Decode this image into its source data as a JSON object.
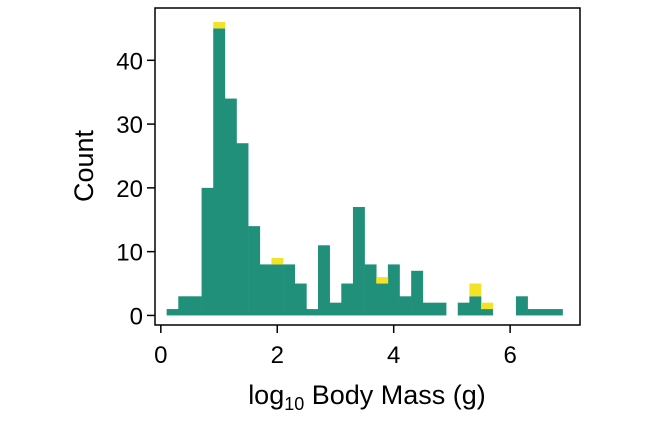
{
  "chart_data": {
    "type": "bar",
    "chart_style": "stacked histogram",
    "title": "",
    "xlabel": "log",
    "xlabel_subscript": "10",
    "xlabel_rest": " Body Mass (g)",
    "ylabel": "Count",
    "xlim": [
      -0.1,
      7.2
    ],
    "ylim": [
      -1.5,
      48.2
    ],
    "xticks": [
      0,
      2,
      4,
      6
    ],
    "yticks": [
      0,
      10,
      20,
      30,
      40
    ],
    "grid": false,
    "legend": "none",
    "bin_width": 0.2,
    "bin_starts": [
      0.1,
      0.3,
      0.5,
      0.7,
      0.9,
      1.1,
      1.3,
      1.5,
      1.7,
      1.9,
      2.1,
      2.3,
      2.5,
      2.7,
      2.9,
      3.1,
      3.3,
      3.5,
      3.7,
      3.9,
      4.1,
      4.3,
      4.5,
      4.7,
      4.9,
      5.1,
      5.3,
      5.5,
      5.7,
      5.9,
      6.1,
      6.3,
      6.5,
      6.7
    ],
    "series": [
      {
        "color": "#21907a",
        "values": [
          1,
          3,
          3,
          20,
          45,
          34,
          27,
          14,
          8,
          8,
          8,
          5,
          1,
          11,
          2,
          5,
          17,
          8,
          5,
          8,
          3,
          7,
          2,
          2,
          0,
          2,
          3,
          1,
          0,
          0,
          3,
          1,
          1,
          1
        ]
      },
      {
        "color": "#f3e226",
        "values": [
          0,
          0,
          0,
          0,
          1,
          0,
          0,
          0,
          0,
          1,
          0,
          0,
          0,
          0,
          0,
          0,
          0,
          0,
          1,
          0,
          0,
          0,
          0,
          0,
          0,
          0,
          2,
          1,
          0,
          0,
          0,
          0,
          0,
          0
        ]
      }
    ]
  }
}
